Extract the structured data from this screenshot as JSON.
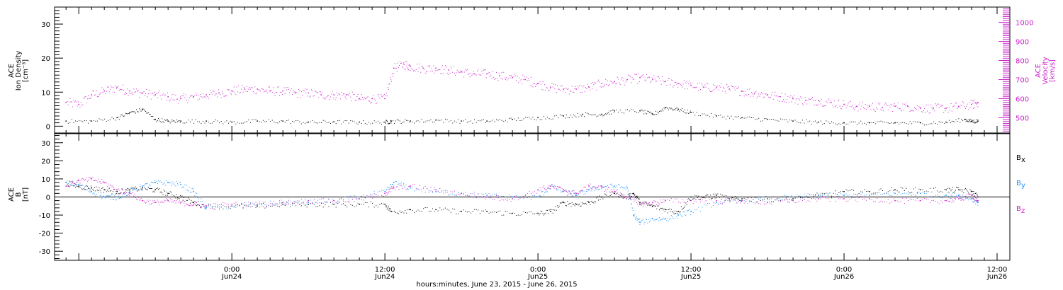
{
  "chart_data": [
    {
      "type": "scatter",
      "panel": "top",
      "ylabel_left": [
        "ACE",
        "Ion Density",
        "[cm⁻³]"
      ],
      "ylabel_right": [
        "ACE",
        "Velocity",
        "[km/s]"
      ],
      "ylim_left": [
        -2,
        35
      ],
      "yticks_left": [
        "0",
        "10",
        "20",
        "30"
      ],
      "ylim_right": [
        420,
        1080
      ],
      "yticks_right": [
        "500",
        "600",
        "700",
        "800",
        "900",
        "1000"
      ],
      "series": [
        {
          "axis": "left",
          "color": "#000000",
          "x": [
            -13,
            -11,
            -9,
            -8,
            -7,
            -6,
            -5,
            -4,
            -2,
            0,
            2,
            4,
            6,
            8,
            10,
            12,
            12.5,
            14,
            16,
            18,
            20,
            22,
            24,
            26,
            27.5,
            29,
            30,
            32,
            33,
            34,
            35,
            36,
            38,
            40,
            42,
            44,
            46,
            48,
            50,
            52,
            54,
            56,
            57.5,
            58,
            58.5
          ],
          "y": [
            1.5,
            1.5,
            2.5,
            4,
            5,
            2,
            1.5,
            1.5,
            1.5,
            1.2,
            1.5,
            1.5,
            1.2,
            1.3,
            1.2,
            1.2,
            1.5,
            1.5,
            1.8,
            1.5,
            1.5,
            2,
            2.5,
            3,
            3.5,
            3.5,
            4.5,
            4.5,
            3.5,
            5.5,
            5,
            4,
            3,
            2.5,
            2,
            1.5,
            1.2,
            1,
            1,
            1,
            1,
            1.2,
            2,
            1.5,
            1.5
          ]
        },
        {
          "axis": "right",
          "color": "#cc22cc",
          "x": [
            -13,
            -12,
            -11,
            -10,
            -9,
            -8,
            -7,
            -6,
            -5,
            -4,
            -3,
            -2,
            -1,
            0,
            1,
            2,
            3,
            4,
            5,
            6,
            7,
            8,
            9,
            10,
            11,
            12,
            12.7,
            13.5,
            14,
            15,
            16,
            17,
            18,
            19,
            20,
            21,
            22,
            23,
            24,
            25,
            26,
            27,
            28,
            29,
            30,
            31,
            32,
            33,
            34,
            35,
            36,
            37,
            38,
            39,
            40,
            41,
            42,
            43,
            44,
            45,
            46,
            47,
            48,
            49,
            50,
            51,
            52,
            53,
            54,
            55,
            56,
            57,
            58,
            58.5
          ],
          "y": [
            580,
            570,
            620,
            640,
            660,
            640,
            630,
            620,
            610,
            600,
            610,
            620,
            630,
            640,
            650,
            650,
            640,
            640,
            630,
            630,
            620,
            620,
            620,
            600,
            600,
            600,
            760,
            780,
            770,
            760,
            760,
            750,
            740,
            730,
            730,
            720,
            710,
            700,
            680,
            660,
            650,
            650,
            660,
            680,
            690,
            700,
            710,
            700,
            690,
            680,
            670,
            660,
            660,
            650,
            640,
            630,
            620,
            610,
            600,
            590,
            590,
            580,
            570,
            560,
            560,
            555,
            560,
            560,
            550,
            550,
            550,
            560,
            570,
            580
          ]
        }
      ]
    },
    {
      "type": "scatter",
      "panel": "bottom",
      "ylabel_left": [
        "ACE",
        "B",
        "[nT]"
      ],
      "ylim": [
        -35,
        35
      ],
      "yticks": [
        "-30",
        "-20",
        "-10",
        "0",
        "10",
        "20",
        "30"
      ],
      "legend": [
        "B",
        "B",
        "B"
      ],
      "legend_sub": [
        "x",
        "y",
        "z"
      ],
      "series": [
        {
          "name": "Bx",
          "color": "#000000",
          "x": [
            -13,
            -12,
            -11,
            -10,
            -9,
            -8,
            -7,
            -6,
            -5,
            -4,
            -3,
            -2,
            0,
            2,
            4,
            6,
            8,
            10,
            12,
            12.5,
            14,
            16,
            18,
            20,
            22,
            24,
            25,
            26,
            27,
            28,
            29,
            30,
            31,
            31.5,
            32,
            33,
            34,
            35,
            36,
            37,
            38,
            39,
            40,
            42,
            44,
            46,
            48,
            50,
            52,
            54,
            56,
            57,
            58,
            58.5
          ],
          "y": [
            8,
            6,
            5,
            4,
            3,
            4,
            5,
            4,
            2,
            0,
            -3,
            -5,
            -5,
            -5,
            -4,
            -4,
            -4,
            -4,
            -4,
            -8,
            -7,
            -7,
            -8,
            -8,
            -9,
            -9,
            -8,
            -3,
            -4,
            -3,
            0,
            2,
            0,
            2,
            -3,
            -5,
            -7,
            -8,
            0,
            0,
            1,
            -1,
            -1,
            -1,
            -1,
            1,
            3,
            3,
            4,
            4,
            4,
            4,
            3,
            0
          ]
        },
        {
          "name": "By",
          "color": "#1e90ff",
          "x": [
            -13,
            -12,
            -11,
            -10,
            -9,
            -8,
            -7,
            -6,
            -5,
            -4,
            -3,
            -2,
            0,
            2,
            4,
            6,
            8,
            10,
            12,
            12.7,
            14,
            16,
            18,
            20,
            22,
            24,
            25,
            26,
            27,
            28,
            29,
            30,
            31,
            31.5,
            32,
            33,
            34,
            35,
            36,
            38,
            40,
            42,
            44,
            46,
            48,
            50,
            52,
            54,
            56,
            57,
            58,
            58.5
          ],
          "y": [
            8,
            7,
            3,
            0,
            0,
            3,
            6,
            8,
            8,
            7,
            3,
            -6,
            -5,
            -4,
            -3,
            -3,
            -2,
            0,
            3,
            8,
            5,
            3,
            2,
            1,
            0,
            0,
            6,
            3,
            1,
            4,
            6,
            6,
            5,
            -10,
            -14,
            -12,
            -12,
            -10,
            -8,
            -3,
            -2,
            -1,
            0,
            1,
            1,
            1,
            2,
            2,
            1,
            1,
            -1,
            -3
          ]
        },
        {
          "name": "Bz",
          "color": "#cc22cc",
          "x": [
            -13,
            -12,
            -11,
            -10,
            -9,
            -8,
            -7,
            -6,
            -5,
            -4,
            -3,
            -2,
            0,
            2,
            4,
            6,
            8,
            10,
            12,
            12.7,
            14,
            16,
            18,
            20,
            22,
            24,
            25,
            26,
            27,
            28,
            29,
            30,
            31,
            32,
            33,
            34,
            36,
            38,
            40,
            42,
            44,
            46,
            48,
            50,
            52,
            54,
            56,
            57,
            58,
            58.5
          ],
          "y": [
            6,
            9,
            10,
            8,
            4,
            2,
            -2,
            -3,
            -2,
            -3,
            -4,
            -5,
            -4,
            -4,
            -3,
            -2,
            -2,
            -1,
            2,
            5,
            6,
            4,
            2,
            0,
            -1,
            4,
            6,
            4,
            2,
            6,
            5,
            3,
            0,
            -4,
            -3,
            -2,
            -2,
            -2,
            -2,
            -3,
            -2,
            -1,
            -1,
            -1,
            -2,
            -2,
            -2,
            -1,
            1,
            -2
          ]
        }
      ]
    }
  ],
  "x_axis": {
    "xlim": [
      -13.9,
      61
    ],
    "ticks": [
      {
        "x": 0,
        "label1": "0:00",
        "label2": "Jun24"
      },
      {
        "x": 12,
        "label1": "12:00",
        "label2": "Jun24"
      },
      {
        "x": 24,
        "label1": "0:00",
        "label2": "Jun25"
      },
      {
        "x": 36,
        "label1": "12:00",
        "label2": "Jun25"
      },
      {
        "x": 48,
        "label1": "0:00",
        "label2": "Jun26"
      },
      {
        "x": 60,
        "label1": "12:00",
        "label2": "Jun26"
      }
    ],
    "xlabel": "hours:minutes, June 23, 2015 - June 26, 2015"
  },
  "colors": {
    "density": "#000000",
    "velocity": "#cc22cc",
    "bx": "#000000",
    "by": "#1e90ff",
    "bz": "#cc22cc"
  }
}
